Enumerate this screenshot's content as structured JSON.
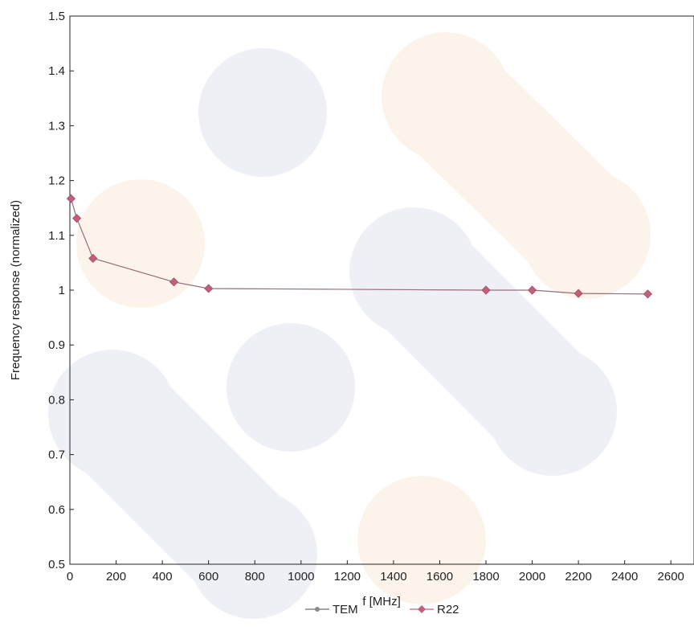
{
  "chart_data": {
    "type": "line",
    "title": "",
    "xlabel": "f [MHz]",
    "ylabel": "Frequency response (normalized)",
    "xlim": [
      0,
      2700
    ],
    "ylim": [
      0.5,
      1.5
    ],
    "xticks": [
      0,
      200,
      400,
      600,
      800,
      1000,
      1200,
      1400,
      1600,
      1800,
      2000,
      2200,
      2400,
      2600
    ],
    "xtick_labels": [
      "0",
      "200",
      "400",
      "600",
      "800",
      "1000",
      "1200",
      "1400",
      "1600",
      "1800",
      "2000",
      "2200",
      "2400",
      "2600"
    ],
    "yticks": [
      0.5,
      0.6,
      0.7,
      0.8,
      0.9,
      1.0,
      1.1,
      1.2,
      1.3,
      1.4,
      1.5
    ],
    "ytick_labels": [
      "0.5",
      "0.6",
      "0.7",
      "0.8",
      "0.9",
      "1",
      "1.1",
      "1.2",
      "1.3",
      "1.4",
      "1.5"
    ],
    "grid": false,
    "legend_position": "bottom-center",
    "x": [
      5,
      30,
      100,
      450,
      600,
      1800,
      2000,
      2200,
      2500
    ],
    "series": [
      {
        "name": "TEM",
        "color": "#8a8a8a",
        "marker": "circle",
        "values": [
          1.167,
          1.131,
          1.058,
          1.015,
          1.003,
          1.0,
          1.0,
          0.994,
          0.993
        ]
      },
      {
        "name": "R22",
        "color": "#c0607a",
        "marker": "diamond",
        "values": [
          1.167,
          1.131,
          1.058,
          1.015,
          1.003,
          1.0,
          1.0,
          0.994,
          0.993
        ]
      }
    ]
  }
}
